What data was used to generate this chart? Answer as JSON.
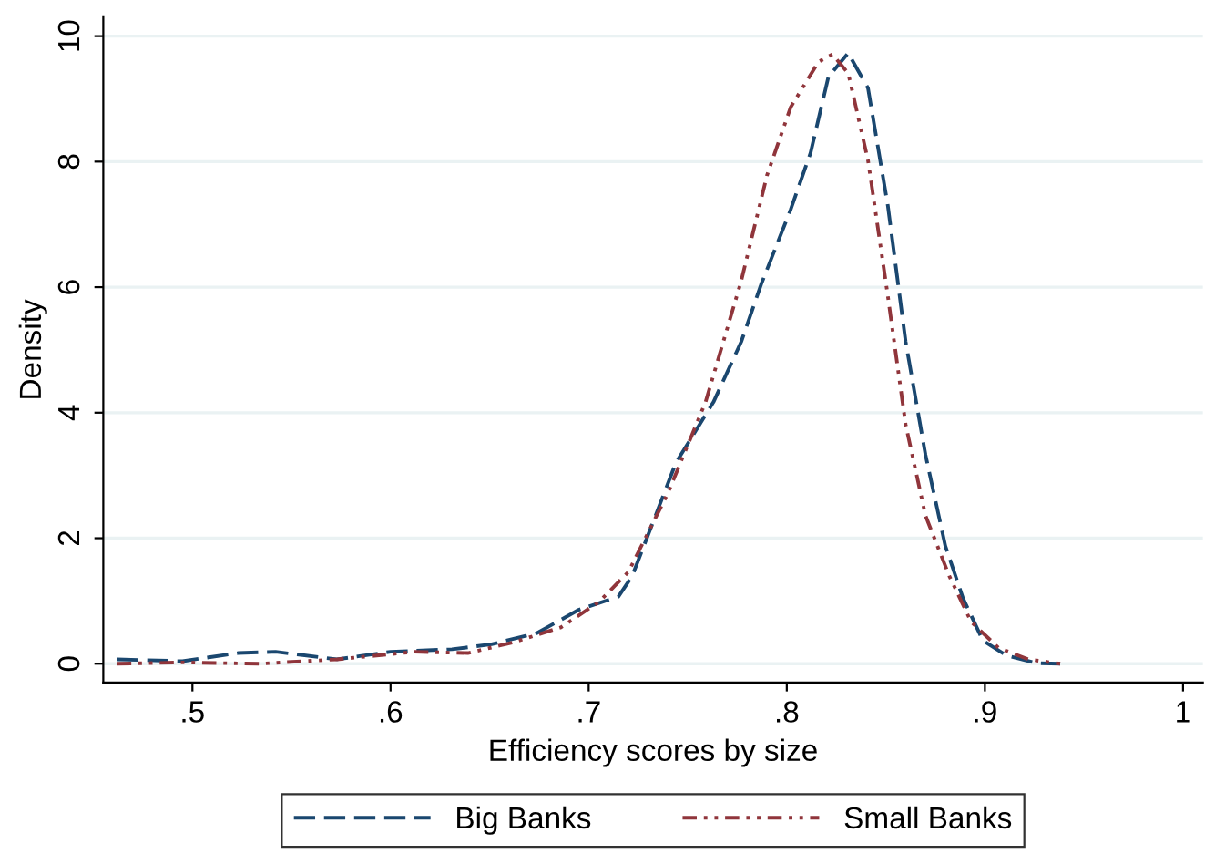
{
  "chart_data": {
    "type": "line",
    "xlabel": "Efficiency scores by size",
    "ylabel": "Density",
    "xlim": [
      0.455,
      1.01
    ],
    "xticks": [
      {
        "value": 0.5,
        "label": ".5"
      },
      {
        "value": 0.6,
        "label": ".6"
      },
      {
        "value": 0.7,
        "label": ".7"
      },
      {
        "value": 0.8,
        "label": ".8"
      },
      {
        "value": 0.9,
        "label": ".9"
      },
      1
    ],
    "ylim": [
      -0.3,
      10.3
    ],
    "yticks": [
      0,
      2,
      4,
      6,
      8,
      10
    ],
    "grid": "y",
    "legend": "bottom",
    "series": [
      {
        "name": "Big Banks",
        "color": "#1a476f",
        "line_style": "dashed",
        "x": [
          0.462,
          0.495,
          0.523,
          0.542,
          0.573,
          0.6,
          0.631,
          0.651,
          0.674,
          0.695,
          0.715,
          0.722,
          0.744,
          0.763,
          0.777,
          0.787,
          0.802,
          0.812,
          0.821,
          0.831,
          0.841,
          0.851,
          0.86,
          0.87,
          0.88,
          0.889,
          0.899,
          0.911,
          0.926,
          0.938
        ],
        "values": [
          0.07,
          0.04,
          0.17,
          0.19,
          0.07,
          0.19,
          0.23,
          0.31,
          0.49,
          0.86,
          1.07,
          1.4,
          3.2,
          4.17,
          5.13,
          6.04,
          7.24,
          8.14,
          9.35,
          9.73,
          9.17,
          7.3,
          5.13,
          3.33,
          1.88,
          1.04,
          0.37,
          0.13,
          0.01,
          0
        ]
      },
      {
        "name": "Small Banks",
        "color": "#90353b",
        "line_style": "dotted",
        "x": [
          0.462,
          0.495,
          0.534,
          0.573,
          0.612,
          0.639,
          0.662,
          0.686,
          0.705,
          0.72,
          0.74,
          0.759,
          0.777,
          0.79,
          0.802,
          0.816,
          0.823,
          0.831,
          0.841,
          0.851,
          0.86,
          0.87,
          0.882,
          0.893,
          0.907,
          0.922,
          0.938
        ],
        "values": [
          0,
          0.02,
          0,
          0.07,
          0.19,
          0.17,
          0.34,
          0.58,
          0.98,
          1.46,
          2.72,
          4.17,
          6.1,
          7.78,
          8.87,
          9.59,
          9.71,
          9.41,
          8.02,
          5.86,
          3.81,
          2.36,
          1.4,
          0.67,
          0.25,
          0.07,
          0
        ]
      }
    ]
  }
}
